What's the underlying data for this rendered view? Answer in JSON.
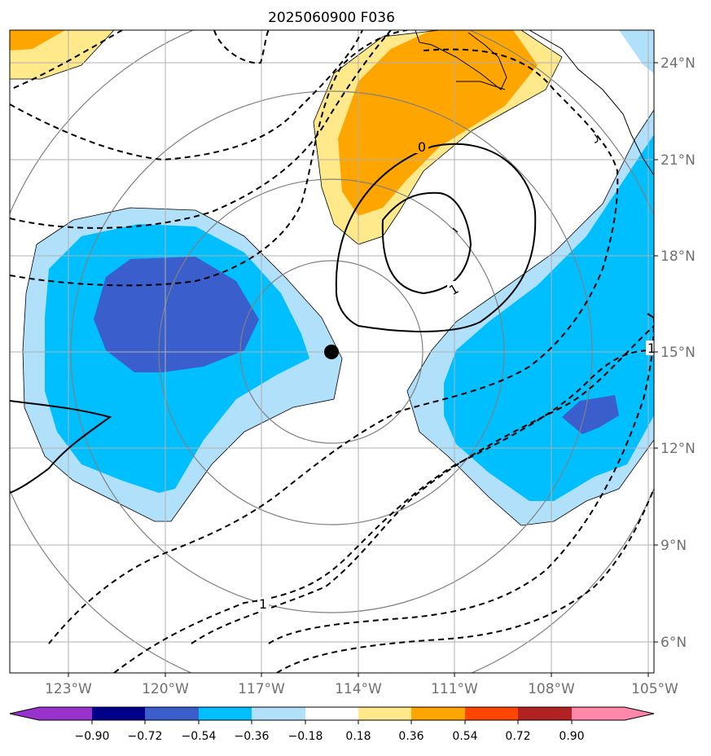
{
  "title": "2025060900 F036",
  "longitude_labels": [
    "123°W",
    "120°W",
    "117°W",
    "114°W",
    "111°W",
    "108°W",
    "105°W"
  ],
  "latitude_labels": [
    "24°N",
    "21°N",
    "18°N",
    "15°N",
    "12°N",
    "9°N",
    "6°N"
  ],
  "contour_labels": [
    "0",
    "1",
    "1",
    "1"
  ],
  "colorbar": {
    "tick_labels": [
      "−0.90",
      "−0.72",
      "−0.54",
      "−0.36",
      "−0.18",
      "0.18",
      "0.36",
      "0.54",
      "0.72",
      "0.90"
    ],
    "colors": [
      "#9932cc",
      "#00008b",
      "#3a5fcd",
      "#00bfff",
      "#b0e0fa",
      "#ffffff",
      "#ffe98a",
      "#ffa500",
      "#ff4500",
      "#b22222",
      "#ff88aa"
    ]
  },
  "colors": {
    "deep_negative": "#3a5fcd",
    "mid_negative": "#00bfff",
    "light_negative": "#b0e0fa",
    "light_positive": "#ffe98a",
    "mid_positive": "#ffa500",
    "gridline": "#b0b0b0",
    "tick_label": "#707070"
  },
  "marker": {
    "name": "storm-center",
    "lon_deg_w": 114.8,
    "lat_deg_n": 15.0
  }
}
